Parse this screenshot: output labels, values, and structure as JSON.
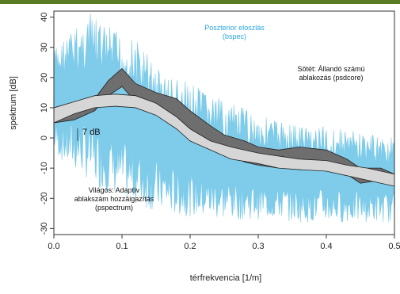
{
  "frame": {
    "accent": "#5a7a26",
    "background": "#ffffff"
  },
  "chart_data": {
    "type": "line",
    "xlabel": "térfrekvencia [1/m]",
    "ylabel": "spektrum [dB]",
    "xlim": [
      0.0,
      0.5
    ],
    "ylim": [
      -32,
      42
    ],
    "x_ticks": [
      "0.0",
      "0.1",
      "0.2",
      "0.3",
      "0.4",
      "0.5"
    ],
    "y_ticks": [
      "-30",
      "-20",
      "-10",
      "0",
      "10",
      "20",
      "30",
      "40"
    ],
    "grid": false,
    "annotations": {
      "bspec": "Poszterior eloszlás\n(bspec)",
      "psdcore": "Sötét: Állandó számú\nablakozás (psdcore)",
      "pspectrum": "Világos: Adaptív\nablakszám hozzáigazítás\n(pspectrum)",
      "offset": "7 dB"
    },
    "series": [
      {
        "name": "bspec",
        "color": "#7ecbea",
        "x": [
          0.0,
          0.02,
          0.04,
          0.05,
          0.06,
          0.08,
          0.1,
          0.12,
          0.14,
          0.16,
          0.18,
          0.2,
          0.22,
          0.25,
          0.28,
          0.3,
          0.33,
          0.36,
          0.4,
          0.43,
          0.45,
          0.48,
          0.5
        ],
        "upper": [
          30,
          35,
          38,
          42,
          40,
          37,
          35,
          33,
          28,
          22,
          20,
          18,
          16,
          12,
          10,
          8,
          6,
          5,
          4,
          3,
          2,
          1,
          0
        ],
        "lower": [
          -5,
          -10,
          -12,
          -14,
          -16,
          -18,
          -20,
          -22,
          -24,
          -25,
          -26,
          -26,
          -27,
          -27,
          -27,
          -27,
          -27,
          -28,
          -28,
          -28,
          -28,
          -28,
          -28
        ]
      },
      {
        "name": "psdcore",
        "color": "#6e6e6e",
        "x": [
          0.0,
          0.03,
          0.06,
          0.08,
          0.1,
          0.12,
          0.15,
          0.18,
          0.2,
          0.23,
          0.25,
          0.28,
          0.3,
          0.33,
          0.36,
          0.4,
          0.43,
          0.45,
          0.48,
          0.5
        ],
        "upper": [
          10,
          10,
          13,
          19,
          23,
          18,
          15,
          13,
          9,
          4,
          1,
          -1,
          -3,
          -4,
          -3,
          -4,
          -7,
          -10,
          -10,
          -12
        ],
        "lower": [
          5,
          6,
          9,
          14,
          17,
          12,
          10,
          7,
          3,
          -2,
          -5,
          -8,
          -9,
          -10,
          -10,
          -10,
          -12,
          -15,
          -14,
          -16
        ]
      },
      {
        "name": "pspectrum",
        "color": "#d6d6d6",
        "x": [
          0.0,
          0.03,
          0.06,
          0.09,
          0.12,
          0.15,
          0.18,
          0.2,
          0.23,
          0.26,
          0.3,
          0.33,
          0.36,
          0.4,
          0.43,
          0.46,
          0.5
        ],
        "upper": [
          10,
          12,
          14,
          14.5,
          14,
          11.5,
          7,
          3,
          -1,
          -3,
          -5,
          -6,
          -7,
          -7.5,
          -9,
          -10,
          -12
        ],
        "lower": [
          5,
          8,
          10,
          10.5,
          10,
          7.5,
          3,
          -1,
          -4,
          -7,
          -8.5,
          -10,
          -10.5,
          -11,
          -12.5,
          -14,
          -16
        ]
      }
    ]
  }
}
